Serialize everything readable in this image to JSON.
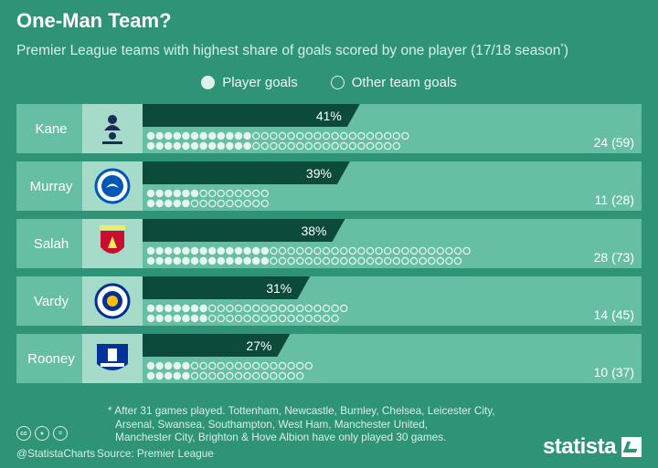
{
  "header": {
    "title": "One-Man Team?",
    "subtitle": "Premier League teams with highest share of goals scored by one player (17/18 season",
    "subtitle_mark": "*",
    "subtitle_close": ")"
  },
  "legend": {
    "player_label": "Player goals",
    "other_label": "Other team goals"
  },
  "colors": {
    "background": "#2f9378",
    "row": "#66bfa4",
    "crest_panel": "#a6dbc9",
    "bar": "#0c4a3b",
    "dot": "#e6f5ef"
  },
  "chart_data": {
    "type": "bar",
    "title": "One-Man Team?",
    "categories": [
      "Kane",
      "Murray",
      "Salah",
      "Vardy",
      "Rooney"
    ],
    "clubs": [
      "Tottenham Hotspur",
      "Brighton & Hove Albion",
      "Liverpool",
      "Leicester City",
      "Everton"
    ],
    "crest_icons": [
      "tottenham-crest-icon",
      "brighton-crest-icon",
      "liverpool-crest-icon",
      "leicester-crest-icon",
      "everton-crest-icon"
    ],
    "series": [
      {
        "name": "Player goals",
        "values": [
          24,
          11,
          28,
          14,
          10
        ]
      },
      {
        "name": "Other team goals",
        "values": [
          35,
          17,
          45,
          31,
          27
        ]
      }
    ],
    "team_goals": [
      59,
      28,
      73,
      45,
      37
    ],
    "share_percent": [
      41,
      39,
      38,
      31,
      27
    ],
    "share_labels": [
      "41%",
      "39%",
      "38%",
      "31%",
      "27%"
    ],
    "goal_labels": [
      "24 (59)",
      "11 (28)",
      "28 (73)",
      "14 (45)",
      "10 (37)"
    ],
    "xlim": [
      0,
      100
    ]
  },
  "footnote": {
    "lines": [
      "* After 31 games played. Tottenham, Newcastle, Burnley, Chelsea, Leicester City,",
      "Arsenal, Swansea, Southampton, West Ham, Manchester United,",
      "Manchester City, Brighton & Hove Albion have only played 30 games."
    ],
    "source": "Source: Premier League"
  },
  "footer": {
    "license_icons": [
      "cc-icon",
      "by-icon",
      "equals-icon"
    ],
    "handle": "@StatistaCharts",
    "brand": "statista"
  }
}
